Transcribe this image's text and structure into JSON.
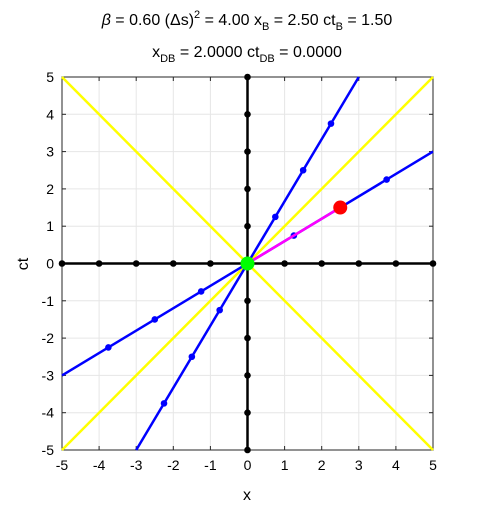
{
  "chart_data": {
    "type": "line",
    "title_line1": {
      "beta_sym": "β",
      "beta_text": " = 0.60   (",
      "delta_sym": "Δ",
      "ds_text": "s)",
      "sq": "2",
      "ds_value": " = 4.00   x",
      "xb_sub": "B",
      "xb_value": " = 2.50  ct",
      "ctb_sub": "B",
      "ctb_value": " = 1.50"
    },
    "title_line2": {
      "x_text": "x",
      "xdb_sub": "DB",
      "xdb_value": " = 2.0000  ct",
      "ctdb_sub": "DB",
      "ctdb_value": " = 0.0000"
    },
    "xlabel": "x",
    "ylabel": "ct",
    "xlim": [
      -5,
      5
    ],
    "ylim": [
      -5,
      5
    ],
    "xticks": [
      "-5",
      "-4",
      "-3",
      "-2",
      "-1",
      "0",
      "1",
      "2",
      "3",
      "4",
      "5"
    ],
    "yticks": [
      "-5",
      "-4",
      "-3",
      "-2",
      "-1",
      "0",
      "1",
      "2",
      "3",
      "4",
      "5"
    ],
    "grid": true,
    "series": [
      {
        "role": "light-cone-positive",
        "color": "#ffff00",
        "points": [
          [
            -5,
            -5
          ],
          [
            5,
            5
          ]
        ],
        "markers": []
      },
      {
        "role": "light-cone-negative",
        "color": "#ffff00",
        "points": [
          [
            -5,
            5
          ],
          [
            5,
            -5
          ]
        ],
        "markers": []
      },
      {
        "role": "rest-x-axis",
        "color": "#000000",
        "points": [
          [
            -5,
            0
          ],
          [
            5,
            0
          ]
        ],
        "markers": [
          [
            -5,
            0
          ],
          [
            -4,
            0
          ],
          [
            -3,
            0
          ],
          [
            -2,
            0
          ],
          [
            -1,
            0
          ],
          [
            1,
            0
          ],
          [
            2,
            0
          ],
          [
            3,
            0
          ],
          [
            4,
            0
          ],
          [
            5,
            0
          ]
        ]
      },
      {
        "role": "rest-ct-axis",
        "color": "#000000",
        "points": [
          [
            0,
            -5
          ],
          [
            0,
            5
          ]
        ],
        "markers": [
          [
            0,
            -5
          ],
          [
            0,
            -4
          ],
          [
            0,
            -3
          ],
          [
            0,
            -2
          ],
          [
            0,
            -1
          ],
          [
            0,
            1
          ],
          [
            0,
            2
          ],
          [
            0,
            3
          ],
          [
            0,
            4
          ],
          [
            0,
            5
          ]
        ]
      },
      {
        "role": "moving-x-axis",
        "color": "#0000ff",
        "points": [
          [
            -5,
            -3
          ],
          [
            5,
            3
          ]
        ],
        "markers": [
          [
            -3.75,
            -2.25
          ],
          [
            -2.5,
            -1.5
          ],
          [
            -1.25,
            -0.75
          ],
          [
            1.25,
            0.75
          ],
          [
            2.5,
            1.5
          ],
          [
            3.75,
            2.25
          ]
        ]
      },
      {
        "role": "moving-ct-axis",
        "color": "#0000ff",
        "points": [
          [
            -3,
            -5
          ],
          [
            3,
            5
          ]
        ],
        "markers": [
          [
            -2.25,
            -3.75
          ],
          [
            -1.5,
            -2.5
          ],
          [
            -0.75,
            -1.25
          ],
          [
            0.75,
            1.25
          ],
          [
            1.5,
            2.5
          ],
          [
            2.25,
            3.75
          ]
        ]
      },
      {
        "role": "interval-segment",
        "color": "#ff00ff",
        "points": [
          [
            0,
            0
          ],
          [
            2.5,
            1.5
          ]
        ],
        "markers": []
      }
    ],
    "events": [
      {
        "role": "origin-event",
        "x": 0,
        "y": 0,
        "color": "#00ff00"
      },
      {
        "role": "event-B",
        "x": 2.5,
        "y": 1.5,
        "color": "#ff0000"
      }
    ]
  }
}
